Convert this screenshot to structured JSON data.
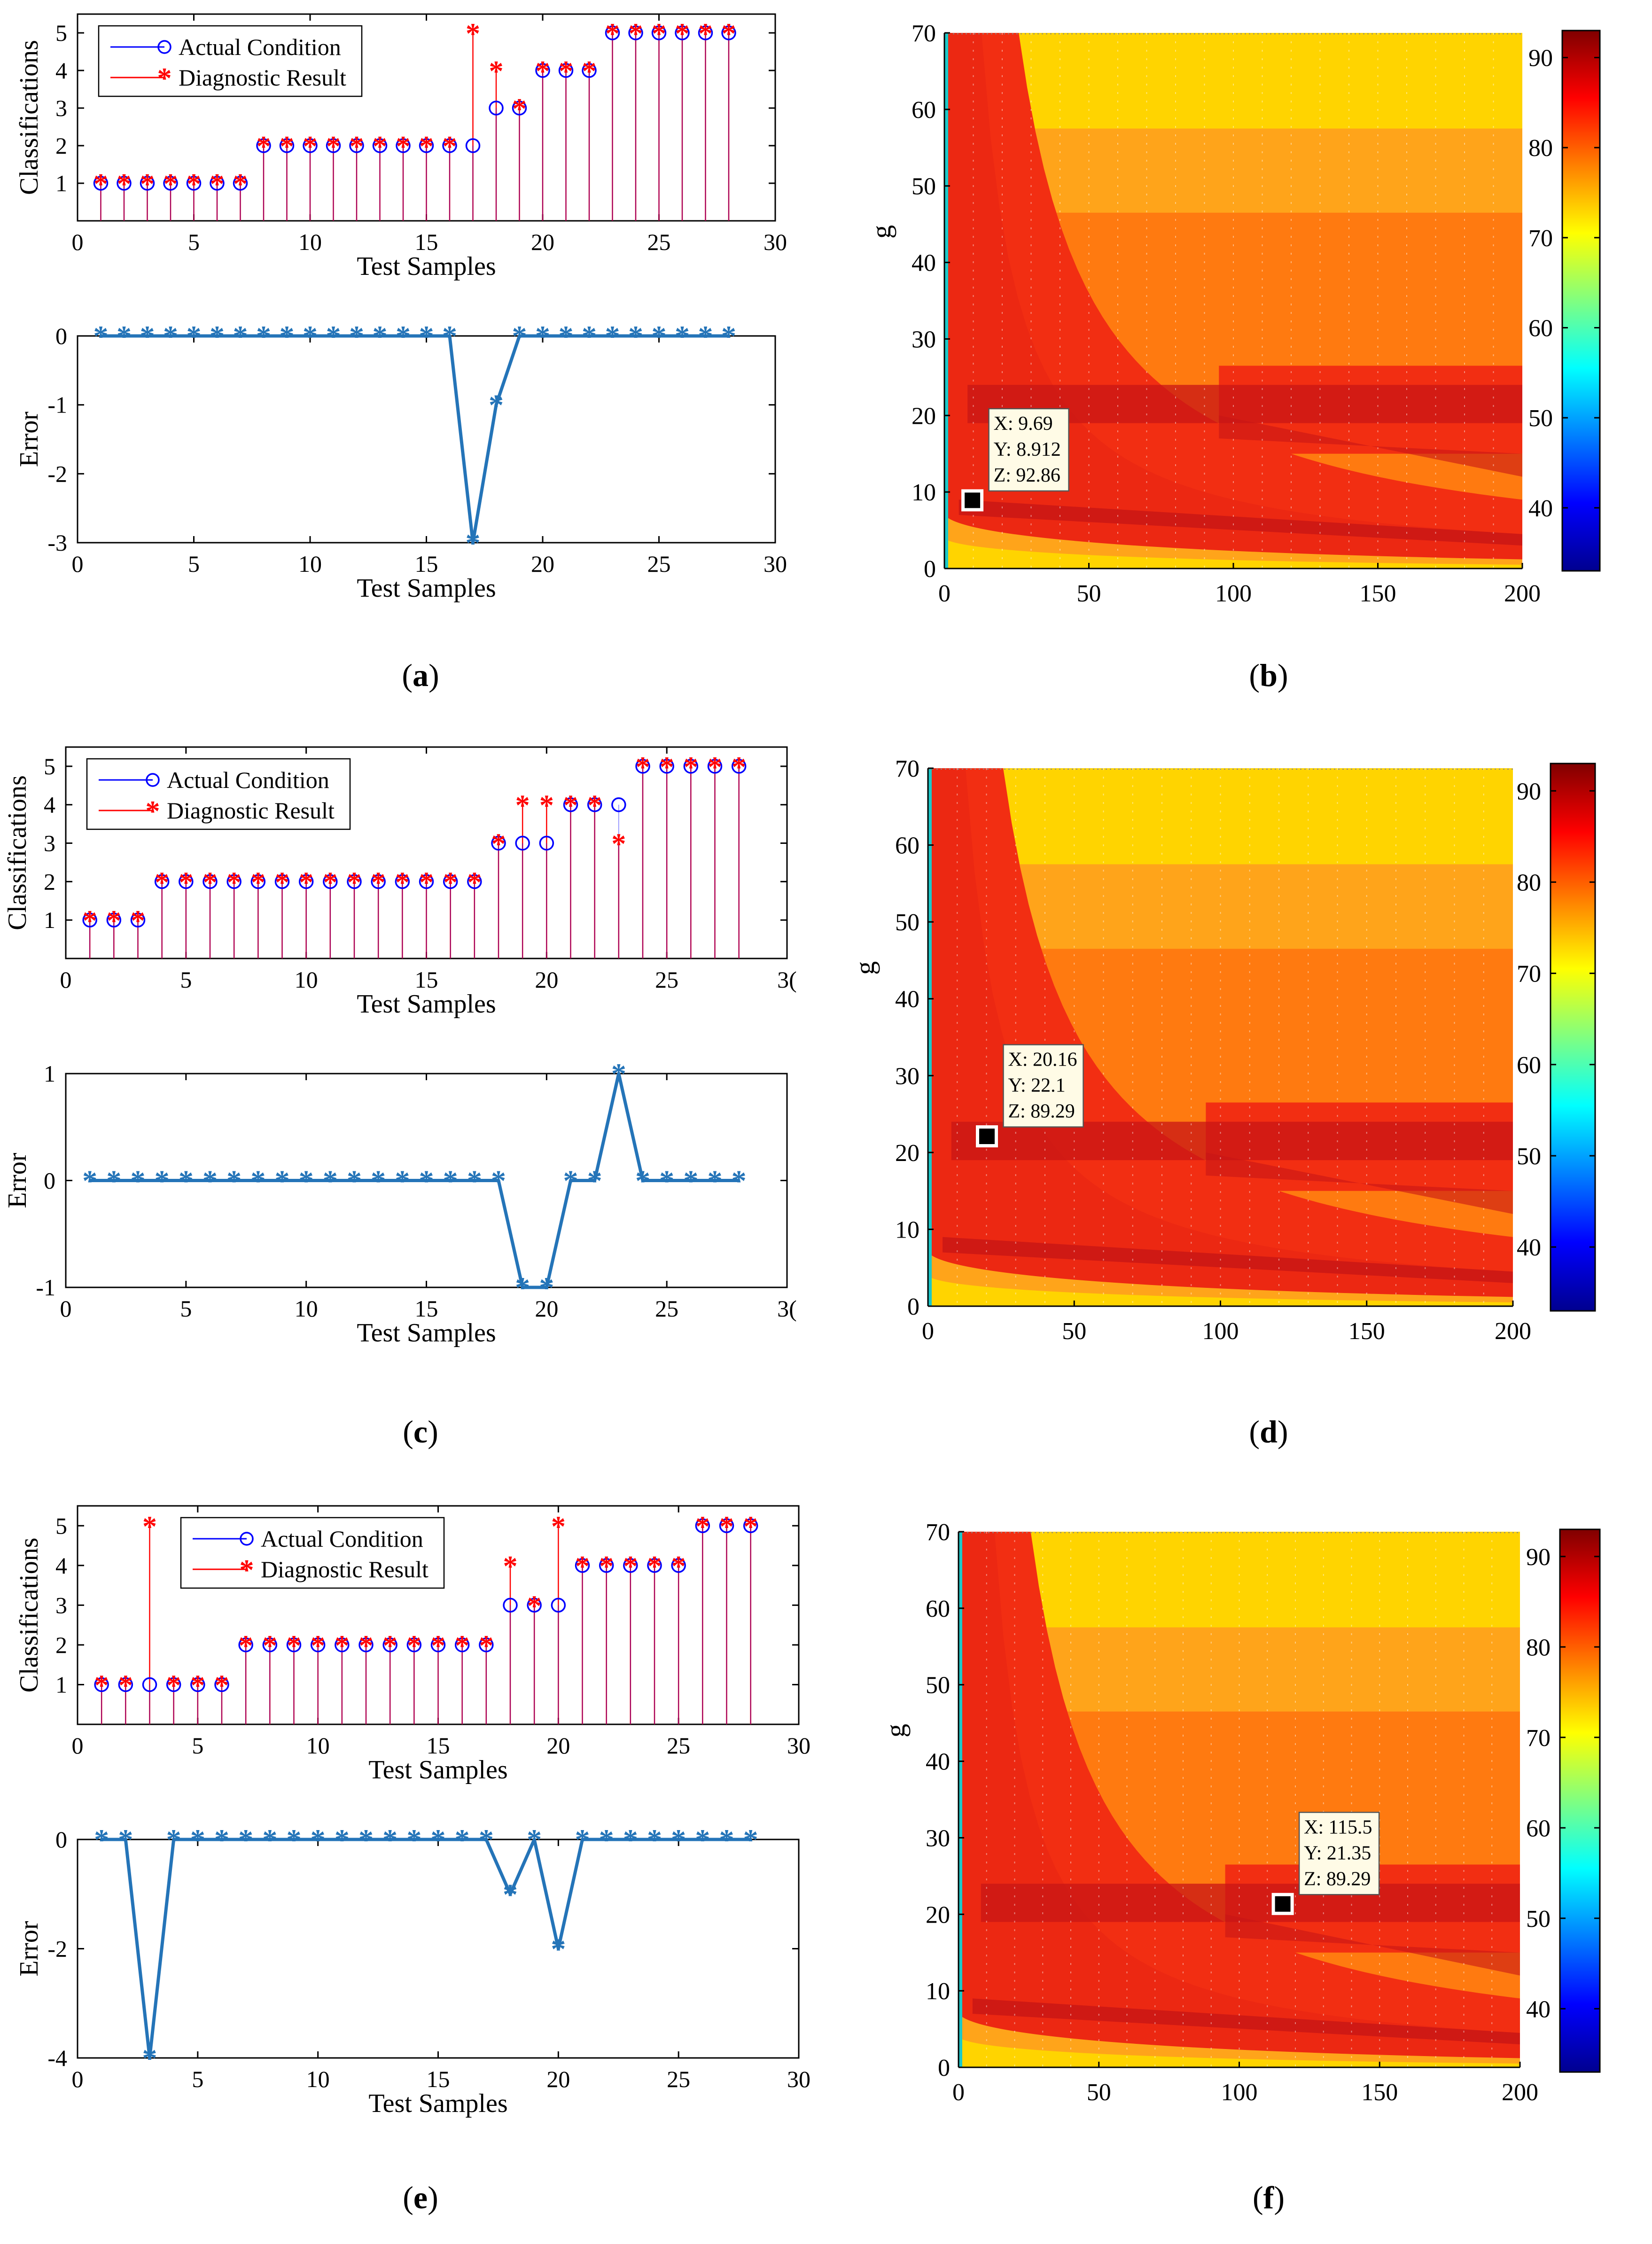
{
  "figure": {
    "colors": {
      "actual": "#0000FF",
      "diagnostic": "#FF0000",
      "error_line": "#2474B8",
      "cmap": [
        "#00008F",
        "#0000FF",
        "#0080FF",
        "#00FFFF",
        "#80FF80",
        "#FFFF00",
        "#FF8000",
        "#FF0000",
        "#800000"
      ],
      "yellow": "#FFD400",
      "orange": "#FFA41A",
      "orange_red": "#FF7A10",
      "red": "#F22E12",
      "dark_red": "#C81515"
    }
  },
  "chart_data": [
    {
      "id": "a",
      "type": "stem",
      "panel_label": "a",
      "title": "",
      "xlabel": "Test Samples",
      "ylabel": "Classifications",
      "xlim": [
        0,
        30
      ],
      "ylim": [
        0,
        5.5
      ],
      "xticks": [
        "0",
        "5",
        "10",
        "15",
        "20",
        "25",
        "30"
      ],
      "yticks": [
        "1",
        "2",
        "3",
        "4",
        "5"
      ],
      "ytick_values": [
        1,
        2,
        3,
        4,
        5
      ],
      "legend_position": "top-left",
      "x": [
        1,
        2,
        3,
        4,
        5,
        6,
        7,
        8,
        9,
        10,
        11,
        12,
        13,
        14,
        15,
        16,
        17,
        18,
        19,
        20,
        21,
        22,
        23,
        24,
        25,
        26,
        27,
        28
      ],
      "series": [
        {
          "name": "Actual Condition",
          "marker": "circle",
          "values": [
            1,
            1,
            1,
            1,
            1,
            1,
            1,
            2,
            2,
            2,
            2,
            2,
            2,
            2,
            2,
            2,
            2,
            3,
            3,
            4,
            4,
            4,
            5,
            5,
            5,
            5,
            5,
            5
          ]
        },
        {
          "name": "Diagnostic Result",
          "marker": "star",
          "values": [
            1,
            1,
            1,
            1,
            1,
            1,
            1,
            2,
            2,
            2,
            2,
            2,
            2,
            2,
            2,
            2,
            5,
            4,
            3,
            4,
            4,
            4,
            5,
            5,
            5,
            5,
            5,
            5
          ]
        }
      ]
    },
    {
      "id": "a_err",
      "type": "line",
      "title": "",
      "xlabel": "Test Samples",
      "ylabel": "Error",
      "xlim": [
        0,
        30
      ],
      "ylim": [
        -3,
        0
      ],
      "xticks": [
        "0",
        "5",
        "10",
        "15",
        "20",
        "25",
        "30"
      ],
      "yticks": [
        "0",
        "-1",
        "-2",
        "-3"
      ],
      "ytick_values": [
        0,
        -1,
        -2,
        -3
      ],
      "x": [
        1,
        2,
        3,
        4,
        5,
        6,
        7,
        8,
        9,
        10,
        11,
        12,
        13,
        14,
        15,
        16,
        17,
        18,
        19,
        20,
        21,
        22,
        23,
        24,
        25,
        26,
        27,
        28
      ],
      "values": [
        0,
        0,
        0,
        0,
        0,
        0,
        0,
        0,
        0,
        0,
        0,
        0,
        0,
        0,
        0,
        0,
        -3,
        -1,
        0,
        0,
        0,
        0,
        0,
        0,
        0,
        0,
        0,
        0
      ]
    },
    {
      "id": "b",
      "type": "heatmap",
      "panel_label": "b",
      "ylabel": "g",
      "xlim": [
        0,
        200
      ],
      "ylim": [
        0,
        70
      ],
      "xticks": [
        "0",
        "50",
        "100",
        "150",
        "200"
      ],
      "xtick_values": [
        0,
        50,
        100,
        150,
        200
      ],
      "yticks": [
        "0",
        "10",
        "20",
        "30",
        "40",
        "50",
        "60",
        "70"
      ],
      "ytick_values": [
        0,
        10,
        20,
        30,
        40,
        50,
        60,
        70
      ],
      "colorbar_range": [
        33,
        93
      ],
      "colorbar_ticks": [
        "40",
        "50",
        "60",
        "70",
        "80",
        "90"
      ],
      "colorbar_tick_values": [
        40,
        50,
        60,
        70,
        80,
        90
      ],
      "datatip": {
        "x": 9.69,
        "y": 8.912,
        "lines": [
          "X: 9.69",
          "Y: 8.912",
          "Z: 92.86"
        ]
      }
    },
    {
      "id": "c",
      "type": "stem",
      "panel_label": "c",
      "title": "",
      "xlabel": "Test Samples",
      "ylabel": "Classifications",
      "xlim": [
        0,
        30
      ],
      "ylim": [
        0,
        5.5
      ],
      "xticks": [
        "0",
        "5",
        "10",
        "15",
        "20",
        "25",
        "3("
      ],
      "yticks": [
        "1",
        "2",
        "3",
        "4",
        "5"
      ],
      "ytick_values": [
        1,
        2,
        3,
        4,
        5
      ],
      "legend_position": "top-left",
      "x": [
        1,
        2,
        3,
        4,
        5,
        6,
        7,
        8,
        9,
        10,
        11,
        12,
        13,
        14,
        15,
        16,
        17,
        18,
        19,
        20,
        21,
        22,
        23,
        24,
        25,
        26,
        27,
        28
      ],
      "series": [
        {
          "name": "Actual Condition",
          "marker": "circle",
          "values": [
            1,
            1,
            1,
            2,
            2,
            2,
            2,
            2,
            2,
            2,
            2,
            2,
            2,
            2,
            2,
            2,
            2,
            3,
            3,
            3,
            4,
            4,
            4,
            5,
            5,
            5,
            5,
            5
          ]
        },
        {
          "name": "Diagnostic Result",
          "marker": "star",
          "values": [
            1,
            1,
            1,
            2,
            2,
            2,
            2,
            2,
            2,
            2,
            2,
            2,
            2,
            2,
            2,
            2,
            2,
            3,
            4,
            4,
            4,
            4,
            3,
            5,
            5,
            5,
            5,
            5
          ]
        }
      ]
    },
    {
      "id": "c_err",
      "type": "line",
      "title": "",
      "xlabel": "Test Samples",
      "ylabel": "Error",
      "xlim": [
        0,
        30
      ],
      "ylim": [
        -1,
        1
      ],
      "xticks": [
        "0",
        "5",
        "10",
        "15",
        "20",
        "25",
        "3("
      ],
      "yticks": [
        "1",
        "0",
        "-1"
      ],
      "ytick_values": [
        1,
        0,
        -1
      ],
      "x": [
        1,
        2,
        3,
        4,
        5,
        6,
        7,
        8,
        9,
        10,
        11,
        12,
        13,
        14,
        15,
        16,
        17,
        18,
        19,
        20,
        21,
        22,
        23,
        24,
        25,
        26,
        27,
        28
      ],
      "values": [
        0,
        0,
        0,
        0,
        0,
        0,
        0,
        0,
        0,
        0,
        0,
        0,
        0,
        0,
        0,
        0,
        0,
        0,
        -1,
        -1,
        0,
        0,
        1,
        0,
        0,
        0,
        0,
        0
      ]
    },
    {
      "id": "d",
      "type": "heatmap",
      "panel_label": "d",
      "ylabel": "g",
      "xlim": [
        0,
        200
      ],
      "ylim": [
        0,
        70
      ],
      "xticks": [
        "0",
        "50",
        "100",
        "150",
        "200"
      ],
      "xtick_values": [
        0,
        50,
        100,
        150,
        200
      ],
      "yticks": [
        "0",
        "10",
        "20",
        "30",
        "40",
        "50",
        "60",
        "70"
      ],
      "ytick_values": [
        0,
        10,
        20,
        30,
        40,
        50,
        60,
        70
      ],
      "colorbar_range": [
        33,
        93
      ],
      "colorbar_ticks": [
        "40",
        "50",
        "60",
        "70",
        "80",
        "90"
      ],
      "colorbar_tick_values": [
        40,
        50,
        60,
        70,
        80,
        90
      ],
      "datatip": {
        "x": 20.16,
        "y": 22.1,
        "lines": [
          "X: 20.16",
          "Y: 22.1",
          "Z: 89.29"
        ]
      }
    },
    {
      "id": "e",
      "type": "stem",
      "panel_label": "e",
      "title": "",
      "xlabel": "Test Samples",
      "ylabel": "Classifications",
      "xlim": [
        0,
        30
      ],
      "ylim": [
        0,
        5.5
      ],
      "xticks": [
        "0",
        "5",
        "10",
        "15",
        "20",
        "25",
        "30"
      ],
      "yticks": [
        "1",
        "2",
        "3",
        "4",
        "5"
      ],
      "ytick_values": [
        1,
        2,
        3,
        4,
        5
      ],
      "legend_position": "top-center",
      "x": [
        1,
        2,
        3,
        4,
        5,
        6,
        7,
        8,
        9,
        10,
        11,
        12,
        13,
        14,
        15,
        16,
        17,
        18,
        19,
        20,
        21,
        22,
        23,
        24,
        25,
        26,
        27,
        28
      ],
      "series": [
        {
          "name": "Actual Condition",
          "marker": "circle",
          "values": [
            1,
            1,
            1,
            1,
            1,
            1,
            2,
            2,
            2,
            2,
            2,
            2,
            2,
            2,
            2,
            2,
            2,
            3,
            3,
            3,
            4,
            4,
            4,
            4,
            4,
            5,
            5,
            5
          ]
        },
        {
          "name": "Diagnostic Result",
          "marker": "star",
          "values": [
            1,
            1,
            5,
            1,
            1,
            1,
            2,
            2,
            2,
            2,
            2,
            2,
            2,
            2,
            2,
            2,
            2,
            4,
            3,
            5,
            4,
            4,
            4,
            4,
            4,
            5,
            5,
            5
          ]
        }
      ]
    },
    {
      "id": "e_err",
      "type": "line",
      "title": "",
      "xlabel": "Test Samples",
      "ylabel": "Error",
      "xlim": [
        0,
        30
      ],
      "ylim": [
        -4,
        0
      ],
      "xticks": [
        "0",
        "5",
        "10",
        "15",
        "20",
        "25",
        "30"
      ],
      "yticks": [
        "0",
        "-2",
        "-4"
      ],
      "ytick_values": [
        0,
        -2,
        -4
      ],
      "x": [
        1,
        2,
        3,
        4,
        5,
        6,
        7,
        8,
        9,
        10,
        11,
        12,
        13,
        14,
        15,
        16,
        17,
        18,
        19,
        20,
        21,
        22,
        23,
        24,
        25,
        26,
        27,
        28
      ],
      "values": [
        0,
        0,
        -4,
        0,
        0,
        0,
        0,
        0,
        0,
        0,
        0,
        0,
        0,
        0,
        0,
        0,
        0,
        -1,
        0,
        -2,
        0,
        0,
        0,
        0,
        0,
        0,
        0,
        0
      ]
    },
    {
      "id": "f",
      "type": "heatmap",
      "panel_label": "f",
      "ylabel": "g",
      "xlim": [
        0,
        200
      ],
      "ylim": [
        0,
        70
      ],
      "xticks": [
        "0",
        "50",
        "100",
        "150",
        "200"
      ],
      "xtick_values": [
        0,
        50,
        100,
        150,
        200
      ],
      "yticks": [
        "0",
        "10",
        "20",
        "30",
        "40",
        "50",
        "60",
        "70"
      ],
      "ytick_values": [
        0,
        10,
        20,
        30,
        40,
        50,
        60,
        70
      ],
      "colorbar_range": [
        33,
        93
      ],
      "colorbar_ticks": [
        "40",
        "50",
        "60",
        "70",
        "80",
        "90"
      ],
      "colorbar_tick_values": [
        40,
        50,
        60,
        70,
        80,
        90
      ],
      "datatip": {
        "x": 115.5,
        "y": 21.35,
        "lines": [
          "X: 115.5",
          "Y: 21.35",
          "Z: 89.29"
        ]
      }
    }
  ]
}
